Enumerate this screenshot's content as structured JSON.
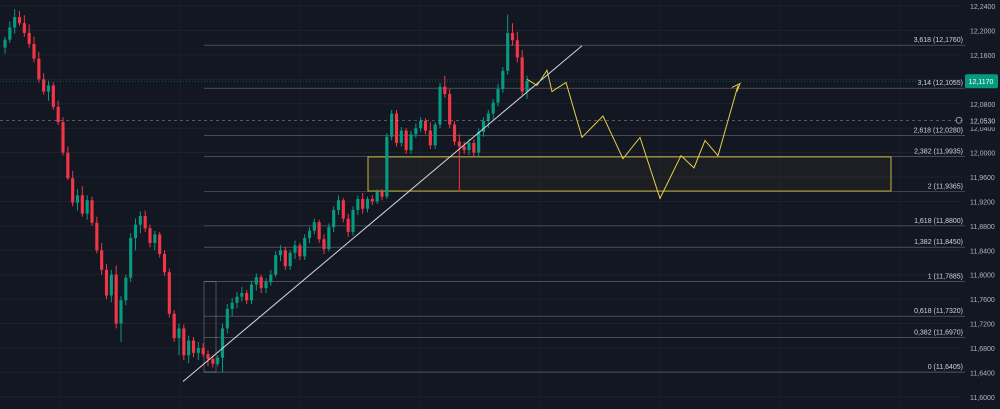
{
  "chart_data": {
    "type": "candlestick",
    "title": "",
    "xlabel": "",
    "ylabel": "",
    "ylim": [
      11.58,
      12.25
    ],
    "grid": true,
    "y_ticks": [
      "12,2400",
      "12,2000",
      "12,1600",
      "12,1200",
      "12,0800",
      "12,0400",
      "12,0000",
      "11,9600",
      "11,9200",
      "11,8800",
      "11,8400",
      "11,8000",
      "11,7600",
      "11,7200",
      "11,6800",
      "11,6400",
      "11,6000"
    ],
    "y_tick_values": [
      12.24,
      12.2,
      12.16,
      12.12,
      12.08,
      12.04,
      12.0,
      11.96,
      11.92,
      11.88,
      11.84,
      11.8,
      11.76,
      11.72,
      11.68,
      11.64,
      11.6
    ],
    "current_price": {
      "label": "12,1170",
      "value": 12.117,
      "color": "#089981"
    },
    "crosshair_price": {
      "label": "12,0530",
      "value": 12.053
    },
    "fib_levels": [
      {
        "label": "3,618 (12,1760)",
        "value": 12.176
      },
      {
        "label": "3,14 (12,1055)",
        "value": 12.1055
      },
      {
        "label": "2,618 (12,0280)",
        "value": 12.028
      },
      {
        "label": "2,382 (11,9935)",
        "value": 11.9935
      },
      {
        "label": "2 (11,9365)",
        "value": 11.9365
      },
      {
        "label": "1,618 (11,8800)",
        "value": 11.88
      },
      {
        "label": "1,382 (11,8450)",
        "value": 11.845
      },
      {
        "label": "1 (11,7885)",
        "value": 11.7885
      },
      {
        "label": "0,618 (11,7320)",
        "value": 11.732
      },
      {
        "label": "0,382 (11,6970)",
        "value": 11.697
      },
      {
        "label": "0 (11,6405)",
        "value": 11.6405
      }
    ],
    "zone_box": {
      "top": 11.993,
      "bottom": 11.937,
      "color": "#c8b63a"
    },
    "trendline": {
      "from": 11.625,
      "to": 12.175,
      "color": "#d1d4dc"
    },
    "projection_path": [
      12.12,
      12.11,
      12.135,
      12.1,
      12.115,
      12.025,
      12.06,
      11.99,
      12.025,
      11.925,
      11.995,
      11.975,
      12.02,
      11.995,
      12.11
    ],
    "colors": {
      "up": "#089981",
      "down": "#f23645",
      "background": "#131722",
      "fib": "#b2b5be",
      "projection": "#e6cf47"
    },
    "candles": [
      {
        "o": 12.172,
        "h": 12.19,
        "l": 12.162,
        "c": 12.185
      },
      {
        "o": 12.185,
        "h": 12.215,
        "l": 12.18,
        "c": 12.205
      },
      {
        "o": 12.205,
        "h": 12.235,
        "l": 12.195,
        "c": 12.222
      },
      {
        "o": 12.222,
        "h": 12.232,
        "l": 12.208,
        "c": 12.212
      },
      {
        "o": 12.212,
        "h": 12.225,
        "l": 12.19,
        "c": 12.196
      },
      {
        "o": 12.196,
        "h": 12.21,
        "l": 12.172,
        "c": 12.178
      },
      {
        "o": 12.178,
        "h": 12.19,
        "l": 12.148,
        "c": 12.154
      },
      {
        "o": 12.154,
        "h": 12.165,
        "l": 12.115,
        "c": 12.12
      },
      {
        "o": 12.12,
        "h": 12.13,
        "l": 12.095,
        "c": 12.1
      },
      {
        "o": 12.1,
        "h": 12.118,
        "l": 12.085,
        "c": 12.11
      },
      {
        "o": 12.11,
        "h": 12.115,
        "l": 12.07,
        "c": 12.075
      },
      {
        "o": 12.075,
        "h": 12.085,
        "l": 12.045,
        "c": 12.05
      },
      {
        "o": 12.05,
        "h": 12.058,
        "l": 11.995,
        "c": 12.0
      },
      {
        "o": 12.0,
        "h": 12.01,
        "l": 11.955,
        "c": 11.958
      },
      {
        "o": 11.958,
        "h": 11.97,
        "l": 11.912,
        "c": 11.918
      },
      {
        "o": 11.918,
        "h": 11.94,
        "l": 11.905,
        "c": 11.93
      },
      {
        "o": 11.93,
        "h": 11.945,
        "l": 11.895,
        "c": 11.9
      },
      {
        "o": 11.9,
        "h": 11.93,
        "l": 11.89,
        "c": 11.922
      },
      {
        "o": 11.922,
        "h": 11.928,
        "l": 11.88,
        "c": 11.885
      },
      {
        "o": 11.885,
        "h": 11.895,
        "l": 11.835,
        "c": 11.84
      },
      {
        "o": 11.84,
        "h": 11.852,
        "l": 11.8,
        "c": 11.808
      },
      {
        "o": 11.808,
        "h": 11.818,
        "l": 11.76,
        "c": 11.766
      },
      {
        "o": 11.766,
        "h": 11.808,
        "l": 11.755,
        "c": 11.8
      },
      {
        "o": 11.8,
        "h": 11.815,
        "l": 11.712,
        "c": 11.72
      },
      {
        "o": 11.72,
        "h": 11.765,
        "l": 11.69,
        "c": 11.758
      },
      {
        "o": 11.758,
        "h": 11.8,
        "l": 11.75,
        "c": 11.795
      },
      {
        "o": 11.795,
        "h": 11.868,
        "l": 11.788,
        "c": 11.86
      },
      {
        "o": 11.86,
        "h": 11.892,
        "l": 11.84,
        "c": 11.882
      },
      {
        "o": 11.882,
        "h": 11.904,
        "l": 11.868,
        "c": 11.896
      },
      {
        "o": 11.896,
        "h": 11.905,
        "l": 11.87,
        "c": 11.876
      },
      {
        "o": 11.876,
        "h": 11.882,
        "l": 11.845,
        "c": 11.852
      },
      {
        "o": 11.852,
        "h": 11.872,
        "l": 11.84,
        "c": 11.866
      },
      {
        "o": 11.866,
        "h": 11.87,
        "l": 11.828,
        "c": 11.834
      },
      {
        "o": 11.834,
        "h": 11.84,
        "l": 11.798,
        "c": 11.804
      },
      {
        "o": 11.804,
        "h": 11.81,
        "l": 11.73,
        "c": 11.736
      },
      {
        "o": 11.736,
        "h": 11.742,
        "l": 11.69,
        "c": 11.696
      },
      {
        "o": 11.696,
        "h": 11.72,
        "l": 11.668,
        "c": 11.712
      },
      {
        "o": 11.712,
        "h": 11.718,
        "l": 11.66,
        "c": 11.668
      },
      {
        "o": 11.668,
        "h": 11.7,
        "l": 11.655,
        "c": 11.692
      },
      {
        "o": 11.692,
        "h": 11.698,
        "l": 11.665,
        "c": 11.672
      },
      {
        "o": 11.672,
        "h": 11.69,
        "l": 11.66,
        "c": 11.68
      },
      {
        "o": 11.68,
        "h": 11.688,
        "l": 11.666,
        "c": 11.67
      },
      {
        "o": 11.67,
        "h": 11.676,
        "l": 11.65,
        "c": 11.662
      },
      {
        "o": 11.662,
        "h": 11.668,
        "l": 11.648,
        "c": 11.654
      },
      {
        "o": 11.654,
        "h": 11.668,
        "l": 11.65,
        "c": 11.664
      },
      {
        "o": 11.664,
        "h": 11.72,
        "l": 11.64,
        "c": 11.712
      },
      {
        "o": 11.712,
        "h": 11.752,
        "l": 11.704,
        "c": 11.744
      },
      {
        "o": 11.744,
        "h": 11.762,
        "l": 11.732,
        "c": 11.754
      },
      {
        "o": 11.754,
        "h": 11.772,
        "l": 11.745,
        "c": 11.764
      },
      {
        "o": 11.764,
        "h": 11.78,
        "l": 11.756,
        "c": 11.77
      },
      {
        "o": 11.77,
        "h": 11.775,
        "l": 11.752,
        "c": 11.758
      },
      {
        "o": 11.758,
        "h": 11.79,
        "l": 11.752,
        "c": 11.784
      },
      {
        "o": 11.784,
        "h": 11.802,
        "l": 11.774,
        "c": 11.796
      },
      {
        "o": 11.796,
        "h": 11.8,
        "l": 11.77,
        "c": 11.778
      },
      {
        "o": 11.778,
        "h": 11.794,
        "l": 11.77,
        "c": 11.788
      },
      {
        "o": 11.788,
        "h": 11.808,
        "l": 11.782,
        "c": 11.8
      },
      {
        "o": 11.8,
        "h": 11.838,
        "l": 11.796,
        "c": 11.832
      },
      {
        "o": 11.832,
        "h": 11.848,
        "l": 11.822,
        "c": 11.84
      },
      {
        "o": 11.84,
        "h": 11.846,
        "l": 11.808,
        "c": 11.814
      },
      {
        "o": 11.814,
        "h": 11.84,
        "l": 11.808,
        "c": 11.836
      },
      {
        "o": 11.836,
        "h": 11.856,
        "l": 11.826,
        "c": 11.848
      },
      {
        "o": 11.848,
        "h": 11.852,
        "l": 11.824,
        "c": 11.83
      },
      {
        "o": 11.83,
        "h": 11.866,
        "l": 11.824,
        "c": 11.86
      },
      {
        "o": 11.86,
        "h": 11.878,
        "l": 11.852,
        "c": 11.872
      },
      {
        "o": 11.872,
        "h": 11.892,
        "l": 11.866,
        "c": 11.886
      },
      {
        "o": 11.886,
        "h": 11.89,
        "l": 11.852,
        "c": 11.858
      },
      {
        "o": 11.858,
        "h": 11.866,
        "l": 11.834,
        "c": 11.842
      },
      {
        "o": 11.842,
        "h": 11.884,
        "l": 11.838,
        "c": 11.878
      },
      {
        "o": 11.878,
        "h": 11.912,
        "l": 11.87,
        "c": 11.906
      },
      {
        "o": 11.906,
        "h": 11.93,
        "l": 11.898,
        "c": 11.922
      },
      {
        "o": 11.922,
        "h": 11.926,
        "l": 11.886,
        "c": 11.892
      },
      {
        "o": 11.892,
        "h": 11.9,
        "l": 11.862,
        "c": 11.87
      },
      {
        "o": 11.87,
        "h": 11.912,
        "l": 11.864,
        "c": 11.906
      },
      {
        "o": 11.906,
        "h": 11.93,
        "l": 11.898,
        "c": 11.924
      },
      {
        "o": 11.924,
        "h": 11.934,
        "l": 11.9,
        "c": 11.908
      },
      {
        "o": 11.908,
        "h": 11.928,
        "l": 11.902,
        "c": 11.924
      },
      {
        "o": 11.924,
        "h": 11.93,
        "l": 11.914,
        "c": 11.92
      },
      {
        "o": 11.92,
        "h": 11.94,
        "l": 11.916,
        "c": 11.936
      },
      {
        "o": 11.936,
        "h": 11.94,
        "l": 11.922,
        "c": 11.928
      },
      {
        "o": 11.928,
        "h": 12.032,
        "l": 11.924,
        "c": 12.026
      },
      {
        "o": 12.026,
        "h": 12.07,
        "l": 12.02,
        "c": 12.064
      },
      {
        "o": 12.064,
        "h": 12.07,
        "l": 12.01,
        "c": 12.016
      },
      {
        "o": 12.016,
        "h": 12.042,
        "l": 12.01,
        "c": 12.036
      },
      {
        "o": 12.036,
        "h": 12.04,
        "l": 11.998,
        "c": 12.004
      },
      {
        "o": 12.004,
        "h": 12.036,
        "l": 11.998,
        "c": 12.03
      },
      {
        "o": 12.03,
        "h": 12.048,
        "l": 12.024,
        "c": 12.04
      },
      {
        "o": 12.04,
        "h": 12.058,
        "l": 12.034,
        "c": 12.052
      },
      {
        "o": 12.052,
        "h": 12.056,
        "l": 12.03,
        "c": 12.036
      },
      {
        "o": 12.036,
        "h": 12.05,
        "l": 12.006,
        "c": 12.012
      },
      {
        "o": 12.012,
        "h": 12.05,
        "l": 12.006,
        "c": 12.046
      },
      {
        "o": 12.046,
        "h": 12.114,
        "l": 12.04,
        "c": 12.108
      },
      {
        "o": 12.108,
        "h": 12.126,
        "l": 12.09,
        "c": 12.096
      },
      {
        "o": 12.096,
        "h": 12.104,
        "l": 12.04,
        "c": 12.046
      },
      {
        "o": 12.046,
        "h": 12.052,
        "l": 12.012,
        "c": 12.018
      },
      {
        "o": 12.018,
        "h": 12.03,
        "l": 11.936,
        "c": 12.01
      },
      {
        "o": 12.01,
        "h": 12.018,
        "l": 11.998,
        "c": 12.004
      },
      {
        "o": 12.004,
        "h": 12.022,
        "l": 11.996,
        "c": 12.016
      },
      {
        "o": 12.016,
        "h": 12.022,
        "l": 11.994,
        "c": 12.0
      },
      {
        "o": 12.0,
        "h": 12.04,
        "l": 11.994,
        "c": 12.034
      },
      {
        "o": 12.034,
        "h": 12.058,
        "l": 12.026,
        "c": 12.052
      },
      {
        "o": 12.052,
        "h": 12.07,
        "l": 12.04,
        "c": 12.064
      },
      {
        "o": 12.064,
        "h": 12.088,
        "l": 12.054,
        "c": 12.082
      },
      {
        "o": 12.082,
        "h": 12.112,
        "l": 12.076,
        "c": 12.104
      },
      {
        "o": 12.104,
        "h": 12.14,
        "l": 12.098,
        "c": 12.134
      },
      {
        "o": 12.134,
        "h": 12.226,
        "l": 12.128,
        "c": 12.196
      },
      {
        "o": 12.196,
        "h": 12.212,
        "l": 12.176,
        "c": 12.184
      },
      {
        "o": 12.184,
        "h": 12.198,
        "l": 12.148,
        "c": 12.156
      },
      {
        "o": 12.156,
        "h": 12.168,
        "l": 12.094,
        "c": 12.1
      },
      {
        "o": 12.1,
        "h": 12.126,
        "l": 12.088,
        "c": 12.117
      }
    ]
  }
}
